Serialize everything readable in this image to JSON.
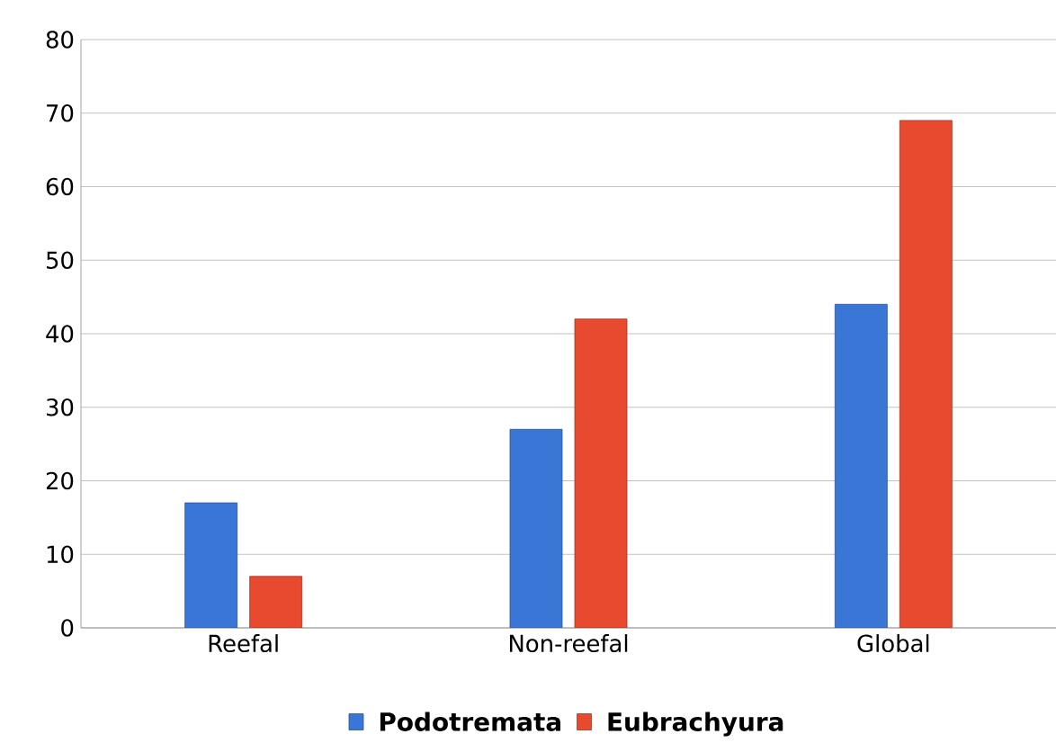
{
  "chart_data": {
    "type": "bar",
    "categories": [
      "Reefal",
      "Non-reefal",
      "Global"
    ],
    "series": [
      {
        "name": "Podotremata",
        "color": "#3a76d6",
        "values": [
          17,
          27,
          44
        ]
      },
      {
        "name": "Eubrachyura",
        "color": "#e84a2f",
        "values": [
          7,
          42,
          69
        ]
      }
    ],
    "ylim": [
      0,
      80
    ],
    "yticks": [
      0,
      10,
      20,
      30,
      40,
      50,
      60,
      70,
      80
    ],
    "grid": "y",
    "legend": "bottom"
  }
}
